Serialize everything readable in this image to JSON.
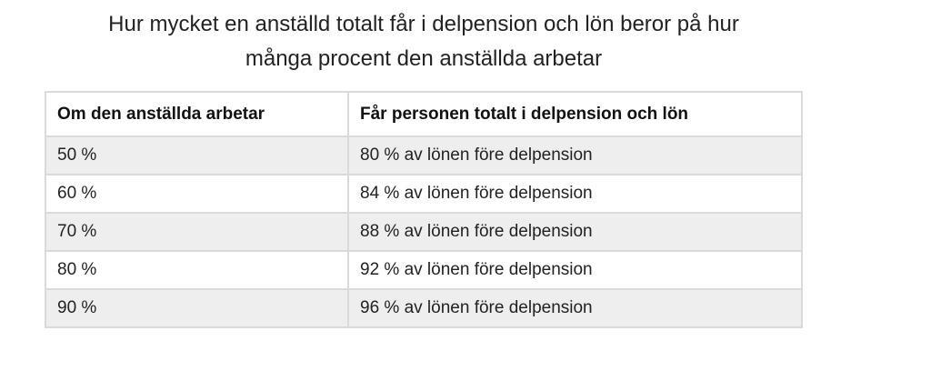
{
  "caption": {
    "line1": "Hur mycket en anställd totalt får i delpension och lön beror på hur",
    "line2": "många procent den anställda arbetar"
  },
  "table": {
    "headers": [
      "Om den anställda arbetar",
      "Får personen totalt i delpension och lön"
    ],
    "rows": [
      [
        "50 %",
        "80 % av lönen före delpension"
      ],
      [
        "60 %",
        "84 % av lönen före delpension"
      ],
      [
        "70 %",
        "88 % av lönen före delpension"
      ],
      [
        "80 %",
        "92 % av lönen före delpension"
      ],
      [
        "90 %",
        "96 % av lönen före delpension"
      ]
    ]
  }
}
